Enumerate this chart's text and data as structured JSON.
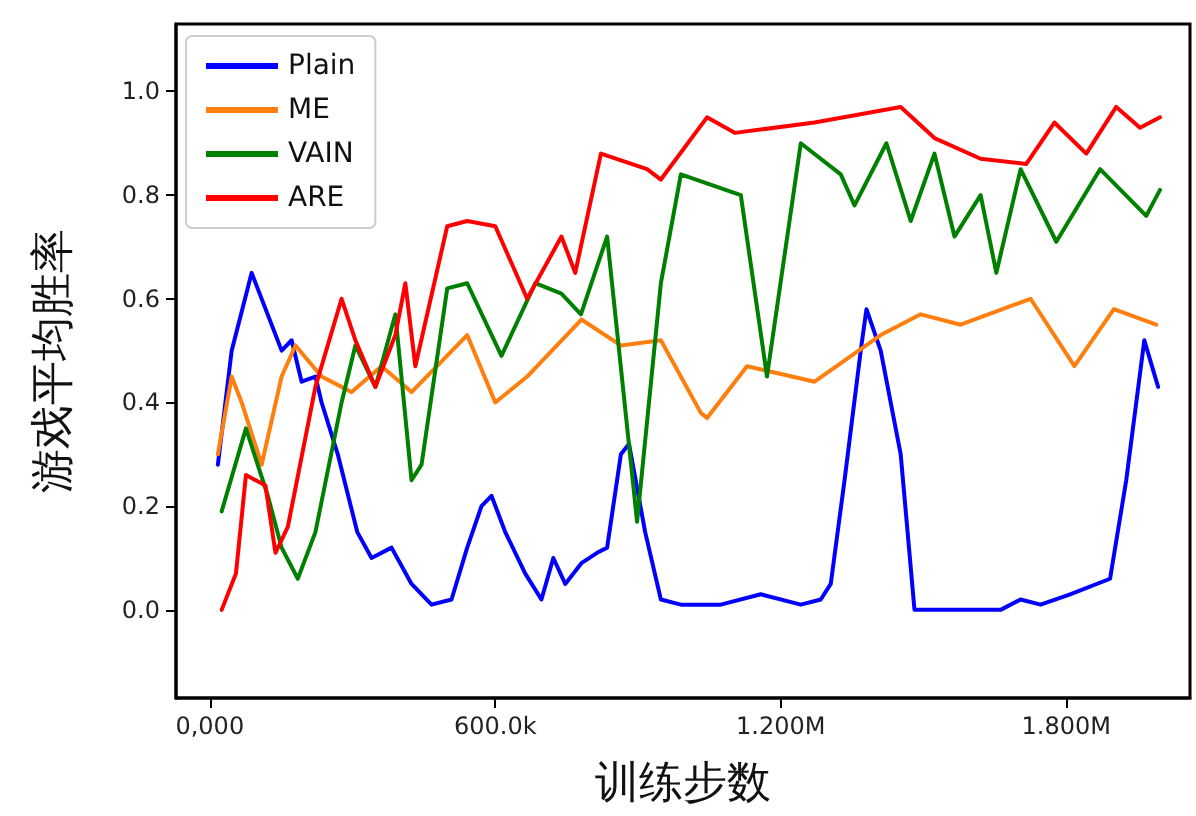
{
  "chart_data": {
    "type": "line",
    "xlabel": "训练步数",
    "ylabel": "游戏平均胜率",
    "xlim": [
      -71000,
      2060000
    ],
    "xticks": [
      {
        "value": 0,
        "label": "0,000"
      },
      {
        "value": 600000,
        "label": "600.0k"
      },
      {
        "value": 1200000,
        "label": "1.200M"
      },
      {
        "value": 1800000,
        "label": "1.800M"
      }
    ],
    "ylim": [
      -0.17,
      1.13
    ],
    "yticks": [
      {
        "value": 0,
        "label": "0.0"
      },
      {
        "value": 0.2,
        "label": "0.2"
      },
      {
        "value": 0.4,
        "label": "0.4"
      },
      {
        "value": 0.6,
        "label": "0.6"
      },
      {
        "value": 0.8,
        "label": "0.8"
      },
      {
        "value": 1,
        "label": "1.0"
      }
    ],
    "grid": false,
    "legend": "top left",
    "marker": "none",
    "line_style": "solid",
    "series": [
      {
        "name": "Plain",
        "color": "#0000ff",
        "x": [
          17000,
          46000,
          88000,
          151000,
          172000,
          193000,
          222000,
          235000,
          269000,
          310000,
          340000,
          382000,
          424000,
          466000,
          508000,
          541000,
          571000,
          592000,
          621000,
          663000,
          697000,
          722000,
          747000,
          781000,
          814000,
          835000,
          864000,
          881000,
          915000,
          948000,
          990000,
          1074000,
          1158000,
          1242000,
          1284000,
          1305000,
          1334000,
          1368000,
          1380000,
          1410000,
          1452000,
          1481000,
          1536000,
          1662000,
          1704000,
          1746000,
          1808000,
          1892000,
          1926000,
          1964000,
          1980000,
          1993000
        ],
        "values": [
          0.28,
          0.5,
          0.65,
          0.5,
          0.52,
          0.44,
          0.45,
          0.4,
          0.3,
          0.15,
          0.1,
          0.12,
          0.05,
          0.01,
          0.02,
          0.12,
          0.2,
          0.22,
          0.15,
          0.07,
          0.02,
          0.1,
          0.05,
          0.09,
          0.11,
          0.12,
          0.3,
          0.32,
          0.15,
          0.02,
          0.01,
          0.01,
          0.03,
          0.01,
          0.02,
          0.05,
          0.25,
          0.5,
          0.58,
          0.5,
          0.3,
          0.0,
          0.0,
          0.0,
          0.02,
          0.01,
          0.03,
          0.06,
          0.25,
          0.52,
          0.47,
          0.43
        ]
      },
      {
        "name": "ME",
        "color": "#ff7f0e",
        "x": [
          17000,
          46000,
          67000,
          109000,
          151000,
          180000,
          235000,
          298000,
          361000,
          424000,
          541000,
          600000,
          667000,
          781000,
          864000,
          948000,
          1032000,
          1045000,
          1129000,
          1271000,
          1410000,
          1494000,
          1578000,
          1725000,
          1817000,
          1900000,
          1989000
        ],
        "values": [
          0.3,
          0.45,
          0.4,
          0.28,
          0.45,
          0.51,
          0.45,
          0.42,
          0.47,
          0.42,
          0.53,
          0.4,
          0.45,
          0.56,
          0.51,
          0.52,
          0.38,
          0.37,
          0.47,
          0.44,
          0.53,
          0.57,
          0.55,
          0.6,
          0.47,
          0.58,
          0.55
        ]
      },
      {
        "name": "VAIN",
        "color": "#008000",
        "x": [
          25000,
          76000,
          122000,
          151000,
          185000,
          222000,
          277000,
          306000,
          348000,
          390000,
          424000,
          445000,
          499000,
          541000,
          613000,
          684000,
          739000,
          780000,
          835000,
          898000,
          948000,
          990000,
          1116000,
          1171000,
          1242000,
          1326000,
          1355000,
          1422000,
          1473000,
          1523000,
          1565000,
          1620000,
          1653000,
          1704000,
          1779000,
          1871000,
          1968000,
          1997000
        ],
        "values": [
          0.19,
          0.35,
          0.22,
          0.12,
          0.06,
          0.15,
          0.4,
          0.51,
          0.43,
          0.57,
          0.25,
          0.28,
          0.62,
          0.63,
          0.49,
          0.63,
          0.61,
          0.57,
          0.72,
          0.17,
          0.63,
          0.84,
          0.8,
          0.45,
          0.9,
          0.84,
          0.78,
          0.9,
          0.75,
          0.88,
          0.72,
          0.8,
          0.65,
          0.85,
          0.71,
          0.85,
          0.76,
          0.81
        ]
      },
      {
        "name": "ARE",
        "color": "#ff0000",
        "x": [
          25000,
          55000,
          76000,
          117000,
          138000,
          164000,
          222000,
          277000,
          306000,
          348000,
          390000,
          411000,
          432000,
          499000,
          541000,
          600000,
          667000,
          739000,
          768000,
          822000,
          919000,
          948000,
          1045000,
          1104000,
          1271000,
          1452000,
          1523000,
          1620000,
          1716000,
          1775000,
          1842000,
          1905000,
          1955000,
          1997000
        ],
        "values": [
          0.0,
          0.07,
          0.26,
          0.24,
          0.11,
          0.16,
          0.43,
          0.6,
          0.52,
          0.43,
          0.53,
          0.63,
          0.47,
          0.74,
          0.75,
          0.74,
          0.6,
          0.72,
          0.65,
          0.88,
          0.85,
          0.83,
          0.95,
          0.92,
          0.94,
          0.97,
          0.91,
          0.87,
          0.86,
          0.94,
          0.88,
          0.97,
          0.93,
          0.95
        ]
      }
    ]
  }
}
